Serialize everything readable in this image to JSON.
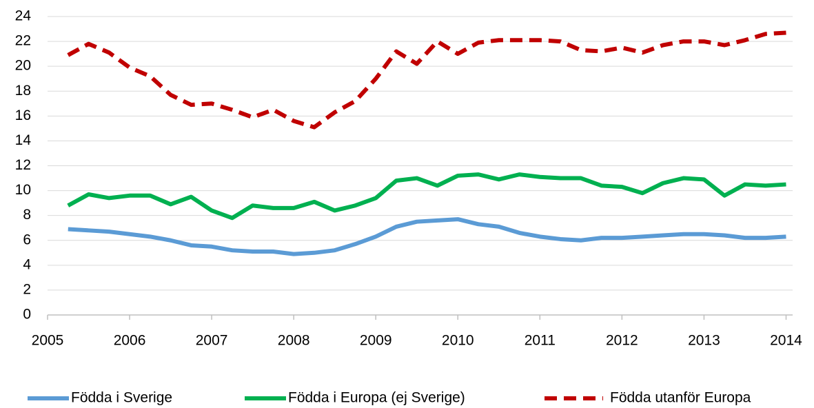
{
  "chart_data": {
    "type": "line",
    "x": [
      2005.25,
      2005.5,
      2005.75,
      2006,
      2006.25,
      2006.5,
      2006.75,
      2007,
      2007.25,
      2007.5,
      2007.75,
      2008,
      2008.25,
      2008.5,
      2008.75,
      2009,
      2009.25,
      2009.5,
      2009.75,
      2010,
      2010.25,
      2010.5,
      2010.75,
      2011,
      2011.25,
      2011.5,
      2011.75,
      2012,
      2012.25,
      2012.5,
      2012.75,
      2013,
      2013.25,
      2013.5,
      2013.75,
      2014
    ],
    "series": [
      {
        "name": "Födda i Sverige",
        "color": "#5b9bd5",
        "dashed": false,
        "values": [
          6.9,
          6.8,
          6.7,
          6.5,
          6.3,
          6.0,
          5.6,
          5.5,
          5.2,
          5.1,
          5.1,
          4.9,
          5.0,
          5.2,
          5.7,
          6.3,
          7.1,
          7.5,
          7.6,
          7.7,
          7.3,
          7.1,
          6.6,
          6.3,
          6.1,
          6.0,
          6.2,
          6.2,
          6.3,
          6.4,
          6.5,
          6.5,
          6.4,
          6.2,
          6.2,
          6.3
        ]
      },
      {
        "name": "Födda i Europa (ej Sverige)",
        "color": "#00b050",
        "dashed": false,
        "values": [
          8.8,
          9.7,
          9.4,
          9.6,
          9.6,
          8.9,
          9.5,
          8.4,
          7.8,
          8.8,
          8.6,
          8.6,
          9.1,
          8.4,
          8.8,
          9.4,
          10.8,
          11.0,
          10.4,
          11.2,
          11.3,
          10.9,
          11.3,
          11.1,
          11.0,
          11.0,
          10.4,
          10.3,
          9.8,
          10.6,
          11.0,
          10.9,
          9.6,
          10.5,
          10.4,
          10.5
        ]
      },
      {
        "name": "Födda utanför Europa",
        "color": "#c00000",
        "dashed": true,
        "values": [
          20.9,
          21.8,
          21.1,
          19.9,
          19.2,
          17.7,
          16.9,
          17.0,
          16.5,
          15.9,
          16.5,
          15.6,
          15.1,
          16.3,
          17.2,
          19.0,
          21.2,
          20.2,
          22.0,
          21.0,
          21.9,
          22.1,
          22.1,
          22.1,
          22.0,
          21.3,
          21.2,
          21.5,
          21.1,
          21.7,
          22.0,
          22.0,
          21.7,
          22.1,
          22.6,
          22.7
        ]
      }
    ],
    "xlim": [
      2005,
      2014.08
    ],
    "xticks": [
      2005,
      2006,
      2007,
      2008,
      2009,
      2010,
      2011,
      2012,
      2013,
      2014
    ],
    "ylim": [
      0,
      24
    ],
    "yticks": [
      0,
      2,
      4,
      6,
      8,
      10,
      12,
      14,
      16,
      18,
      20,
      22,
      24
    ],
    "grid": true,
    "legend": "bottom"
  }
}
